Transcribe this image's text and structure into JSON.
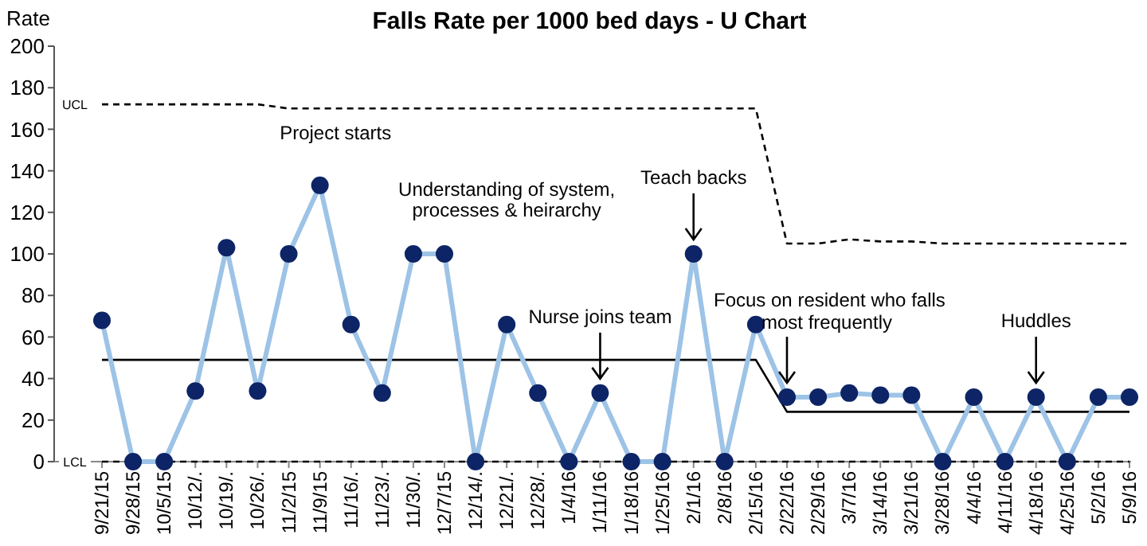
{
  "chart_data": {
    "type": "line",
    "title": "Falls Rate per 1000 bed days - U Chart",
    "ylabel": "Rate",
    "categories": [
      "9/21/15",
      "9/28/15",
      "10/5/15",
      "10/12/.",
      "10/19/.",
      "10/26/.",
      "11/2/15",
      "11/9/15",
      "11/16/.",
      "11/23/.",
      "11/30/.",
      "12/7/15",
      "12/14/.",
      "12/21/.",
      "12/28/.",
      "1/4/16",
      "1/11/16",
      "1/18/16",
      "1/25/16",
      "2/1/16",
      "2/8/16",
      "2/15/16",
      "2/22/16",
      "2/29/16",
      "3/7/16",
      "3/14/16",
      "3/21/16",
      "3/28/16",
      "4/4/16",
      "4/11/16",
      "4/18/16",
      "4/25/16",
      "5/2/16",
      "5/9/16"
    ],
    "series": [
      {
        "color": "#0d2466",
        "marker": "circle",
        "values": [
          68,
          0,
          0,
          34,
          103,
          34,
          100,
          133,
          66,
          33,
          100,
          100,
          0,
          66,
          33,
          0,
          33,
          0,
          0,
          100,
          0,
          66,
          31,
          31,
          33,
          32,
          32,
          0,
          31,
          0,
          31,
          0,
          31,
          31
        ]
      },
      {
        "color": "#000000",
        "marker": "none",
        "values": [
          49,
          49,
          49,
          49,
          49,
          49,
          49,
          49,
          49,
          49,
          49,
          49,
          49,
          49,
          49,
          49,
          49,
          49,
          49,
          49,
          49,
          49,
          24,
          24,
          24,
          24,
          24,
          24,
          24,
          24,
          24,
          24,
          24,
          24
        ]
      },
      {
        "name": "UCL",
        "color": "#000000",
        "marker": "none",
        "line_style": "dashed",
        "values": [
          172,
          172,
          172,
          172,
          172,
          172,
          170,
          170,
          170,
          170,
          170,
          170,
          170,
          170,
          170,
          170,
          170,
          170,
          170,
          170,
          170,
          170,
          105,
          105,
          107,
          106,
          106,
          105,
          105,
          105,
          105,
          105,
          105,
          105
        ]
      },
      {
        "name": "LCL",
        "color": "#000000",
        "marker": "none",
        "line_style": "dashed",
        "values": [
          0,
          0,
          0,
          0,
          0,
          0,
          0,
          0,
          0,
          0,
          0,
          0,
          0,
          0,
          0,
          0,
          0,
          0,
          0,
          0,
          0,
          0,
          0,
          0,
          0,
          0,
          0,
          0,
          0,
          0,
          0,
          0,
          0,
          0
        ]
      }
    ],
    "ylim": [
      0,
      200
    ],
    "yticks": [
      0,
      20,
      40,
      60,
      80,
      100,
      120,
      140,
      160,
      180,
      200
    ],
    "grid": false,
    "annotations": [
      "Project starts",
      "Understanding of system, processes & heirarchy",
      "Nurse joins team",
      "Teach backs",
      "Focus on resident who falls most frequently",
      "Huddles"
    ]
  }
}
